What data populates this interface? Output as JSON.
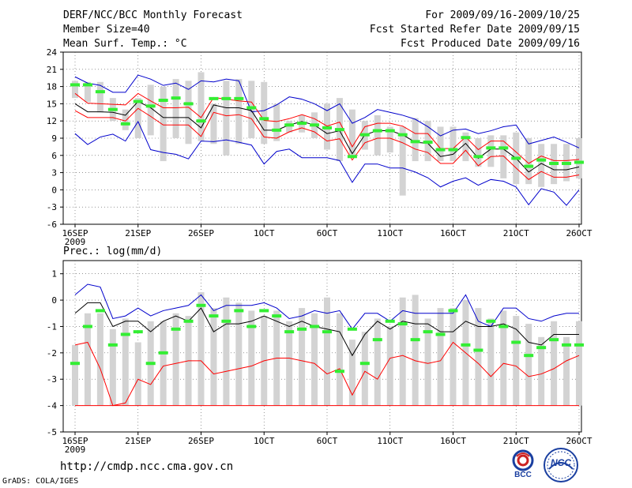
{
  "header": {
    "title": "DERF/NCC/BCC Monthly Forecast",
    "member_size": "Member Size=40",
    "variable": "Mean Surf. Temp.: °C",
    "forecast_range": "For 2009/09/16-2009/10/25",
    "start_date": "Fcst Started Refer Date 2009/09/15",
    "produced_date": "Fcst Produced Date 2009/09/16"
  },
  "footer": {
    "url": "http://cmdp.ncc.cma.gov.cn",
    "grads": "GrADS: COLA/IGES",
    "logo_bcc": "BCC",
    "logo_ncc": "NCC"
  },
  "colors": {
    "box": "#d3d3d3",
    "mean": "#000000",
    "spread": "#ff0000",
    "extreme": "#0000cc",
    "observed": "#33ee33",
    "grid": "#555555"
  },
  "chart_data": [
    {
      "type": "box-ensemble",
      "title": "Mean Surf. Temp.: °C",
      "ylim": [
        -6,
        24
      ],
      "yticks": [
        -6,
        -3,
        0,
        3,
        6,
        9,
        12,
        15,
        18,
        21,
        24
      ],
      "ytick_labels": [
        "-6",
        "-3",
        "0",
        "3",
        "6",
        "9",
        "12",
        "15",
        "18",
        "21",
        "24"
      ],
      "xtick_days": [
        0,
        5,
        10,
        15,
        20,
        25,
        30,
        35,
        40
      ],
      "xtick_labels": [
        "16SEP",
        "21SEP",
        "26SEP",
        "1OCT",
        "6OCT",
        "11OCT",
        "16OCT",
        "21OCT",
        "26OCT"
      ],
      "x_year_label": "2009",
      "box_low": [
        16,
        15.3,
        13.5,
        12,
        10.4,
        9,
        9.5,
        5,
        9,
        8,
        8.5,
        8,
        6,
        8,
        9,
        8,
        8.5,
        10,
        10,
        9,
        7,
        5,
        6,
        7,
        6,
        6.5,
        -1,
        5,
        5,
        5,
        5,
        5,
        4,
        4,
        2,
        1,
        1,
        0.5,
        1,
        1.5,
        2
      ],
      "box_high": [
        19,
        18.8,
        18.8,
        16,
        14,
        16,
        18.3,
        18,
        19.3,
        19,
        20.5,
        15,
        19,
        19.3,
        19,
        18.8,
        15,
        12,
        13,
        13.5,
        15,
        16,
        14,
        12,
        13,
        11,
        11,
        12.5,
        12,
        11,
        11,
        10,
        9,
        9.5,
        9.5,
        10,
        9,
        8,
        8,
        8,
        9
      ],
      "mean": [
        15,
        13.6,
        13.6,
        13.5,
        13,
        15.4,
        14.3,
        12.6,
        12.6,
        12.6,
        10.8,
        14.8,
        14.3,
        14.3,
        13.8,
        10.4,
        10.4,
        11.3,
        11.9,
        11.3,
        9.8,
        10.3,
        6.3,
        9.6,
        10.3,
        10.3,
        9.6,
        8.3,
        8.1,
        5.8,
        6.2,
        8.1,
        5.5,
        7.1,
        7.1,
        5.5,
        3.1,
        4.6,
        3.5,
        3.5,
        4.0
      ],
      "upper_red": [
        16.8,
        15.1,
        15,
        14.9,
        14.8,
        16.8,
        15.5,
        14.3,
        14.3,
        14.4,
        12.6,
        16.1,
        15.8,
        15.5,
        15.3,
        12.1,
        11.9,
        12.4,
        13.1,
        12.4,
        11.1,
        11.8,
        7.5,
        11.0,
        11.6,
        11.6,
        11.1,
        9.8,
        9.8,
        7.2,
        7.2,
        9.2,
        7.0,
        8.5,
        8.5,
        6.6,
        4.6,
        5.9,
        5.1,
        5.1,
        5.3
      ],
      "lower_red": [
        13.8,
        12.6,
        12.6,
        12.6,
        12,
        14.2,
        12.8,
        11.3,
        11.3,
        11.3,
        9.3,
        13.5,
        12.9,
        13.1,
        12.4,
        9.2,
        9,
        10.1,
        10.8,
        10.1,
        8.5,
        8.9,
        5.2,
        8.2,
        9.0,
        9.0,
        8.2,
        7.1,
        6.5,
        4.6,
        4.6,
        6.9,
        4.2,
        5.8,
        5.9,
        3.8,
        1.8,
        3.2,
        2.2,
        2.2,
        2.6
      ],
      "upper_blue": [
        19.7,
        18.6,
        18.2,
        17,
        17,
        20,
        19.3,
        18.2,
        18.6,
        17.5,
        19,
        18.8,
        19.3,
        19,
        13.6,
        13.8,
        14.8,
        16.2,
        15.8,
        15,
        13.8,
        15,
        11.6,
        12.6,
        14,
        13.5,
        13,
        12.3,
        11,
        9.4,
        10.4,
        10.6,
        9.8,
        10.3,
        11,
        11.3,
        8.0,
        8.6,
        9.2,
        8.3,
        7.3
      ],
      "lower_blue": [
        9.8,
        7.9,
        9.2,
        9.7,
        8.5,
        11.9,
        7.0,
        6.5,
        6.2,
        5.4,
        8.5,
        8.4,
        8.7,
        8.3,
        7.8,
        4.5,
        6.7,
        7.1,
        5.6,
        5.6,
        5.6,
        5.1,
        1.3,
        4.5,
        4.5,
        3.8,
        3.8,
        3.1,
        2.1,
        0.5,
        1.5,
        2.1,
        0.8,
        1.8,
        1.5,
        0.5,
        -2.6,
        0.2,
        -0.4,
        -2.7,
        0.0
      ],
      "observed": [
        18.3,
        18.3,
        17.1,
        14,
        11.5,
        15.4,
        14.6,
        15.6,
        16,
        15,
        12,
        15.9,
        15.9,
        15.9,
        14.3,
        12.4,
        10.4,
        11.3,
        11.6,
        11.3,
        10.8,
        10.5,
        5.8,
        9.6,
        10.3,
        10.3,
        9.6,
        8.4,
        8.3,
        7,
        7,
        9.1,
        5.8,
        7.3,
        7.3,
        5.5,
        4.1,
        5.2,
        4.6,
        4.6,
        4.8
      ]
    },
    {
      "type": "box-ensemble",
      "title": "Prec.: log(mm/d)",
      "ylim": [
        -5,
        1.5
      ],
      "yticks": [
        -5,
        -4,
        -3,
        -2,
        -1,
        0,
        1
      ],
      "ytick_labels": [
        "-5",
        "-4",
        "-3",
        "-2",
        "-1",
        "0",
        "1"
      ],
      "xtick_days": [
        0,
        5,
        10,
        15,
        20,
        25,
        30,
        35,
        40
      ],
      "xtick_labels": [
        "16SEP",
        "21SEP",
        "26SEP",
        "1OCT",
        "6OCT",
        "11OCT",
        "16OCT",
        "21OCT",
        "26OCT"
      ],
      "x_year_label": "2009",
      "box_low": [
        -4,
        -4,
        -4,
        -4,
        -4,
        -4,
        -4,
        -4,
        -4,
        -4,
        -4,
        -4,
        -4,
        -4,
        -4,
        -4,
        -4,
        -4,
        -4,
        -4,
        -4,
        -4,
        -4,
        -4,
        -4,
        -4,
        -4,
        -4,
        -4,
        -4,
        -4,
        -4,
        -4,
        -4,
        -4,
        -4,
        -4,
        -4,
        -4,
        -4,
        -4
      ],
      "box_high": [
        -1.7,
        -0.5,
        -0.5,
        -1.1,
        -0.7,
        -1.6,
        -0.8,
        -0.8,
        -0.5,
        -0.6,
        0.3,
        -0.3,
        0.1,
        -0.1,
        -0.4,
        -0.6,
        -0.4,
        -0.8,
        -0.3,
        -0.5,
        0.1,
        -0.5,
        -1.5,
        -1.2,
        -0.7,
        -1.0,
        0.1,
        0.2,
        -0.7,
        -0.3,
        -0.3,
        0.0,
        -0.3,
        -0.7,
        -0.4,
        -0.6,
        -0.9,
        -1.4,
        -0.8,
        -1.4,
        -0.8
      ],
      "mean": [
        -0.5,
        -0.1,
        -0.1,
        -1.0,
        -0.8,
        -0.8,
        -1.2,
        -0.8,
        -0.6,
        -0.8,
        -0.3,
        -1.2,
        -0.9,
        -0.9,
        -0.8,
        -0.6,
        -0.8,
        -1.0,
        -0.8,
        -1.0,
        -1.1,
        -1.2,
        -2.1,
        -1.3,
        -0.8,
        -1.1,
        -0.8,
        -0.9,
        -0.9,
        -1.2,
        -1.2,
        -0.8,
        -1.0,
        -1.0,
        -0.9,
        -1.1,
        -1.6,
        -1.7,
        -1.3,
        -1.3,
        -1.3
      ],
      "upper_blue": [
        0.2,
        0.6,
        0.5,
        -0.7,
        -0.6,
        -0.3,
        -0.6,
        -0.4,
        -0.3,
        -0.2,
        0.2,
        -0.4,
        -0.2,
        -0.2,
        -0.2,
        -0.1,
        -0.3,
        -0.7,
        -0.6,
        -0.4,
        -0.5,
        -0.4,
        -1.1,
        -0.5,
        -0.5,
        -0.8,
        -0.4,
        -0.5,
        -0.5,
        -0.5,
        -0.5,
        0.2,
        -0.8,
        -1.0,
        -0.3,
        -0.3,
        -0.7,
        -0.8,
        -0.6,
        -0.5,
        -0.5
      ],
      "lower_red": [
        -1.7,
        -1.6,
        -2.6,
        -4.0,
        -3.9,
        -3.0,
        -3.2,
        -2.5,
        -2.4,
        -2.3,
        -2.3,
        -2.8,
        -2.7,
        -2.6,
        -2.5,
        -2.3,
        -2.2,
        -2.2,
        -2.3,
        -2.4,
        -2.8,
        -2.6,
        -3.6,
        -2.7,
        -3.0,
        -2.2,
        -2.1,
        -2.3,
        -2.4,
        -2.3,
        -1.6,
        -2.0,
        -2.4,
        -2.9,
        -2.4,
        -2.5,
        -2.9,
        -2.8,
        -2.6,
        -2.3,
        -2.1
      ],
      "floor_line": -4,
      "observed": [
        -2.4,
        -1.0,
        -0.4,
        -1.7,
        -1.3,
        -1.2,
        -2.4,
        -2.0,
        -1.1,
        -0.8,
        -0.2,
        -0.6,
        -0.8,
        -0.4,
        -1.0,
        -0.4,
        -0.6,
        -1.2,
        -1.1,
        -1.0,
        -1.2,
        -2.7,
        -1.1,
        -2.4,
        -1.5,
        -0.8,
        -0.9,
        -1.5,
        -1.2,
        -1.3,
        -0.4,
        -1.7,
        -1.9,
        -0.8,
        -1.0,
        -1.6,
        -2.1,
        -1.8,
        -1.5,
        -1.7,
        -1.7
      ]
    }
  ],
  "temp_panel_label": "Mean Surf. Temp.: °C",
  "prec_panel_label": "Prec.: log(mm/d)"
}
